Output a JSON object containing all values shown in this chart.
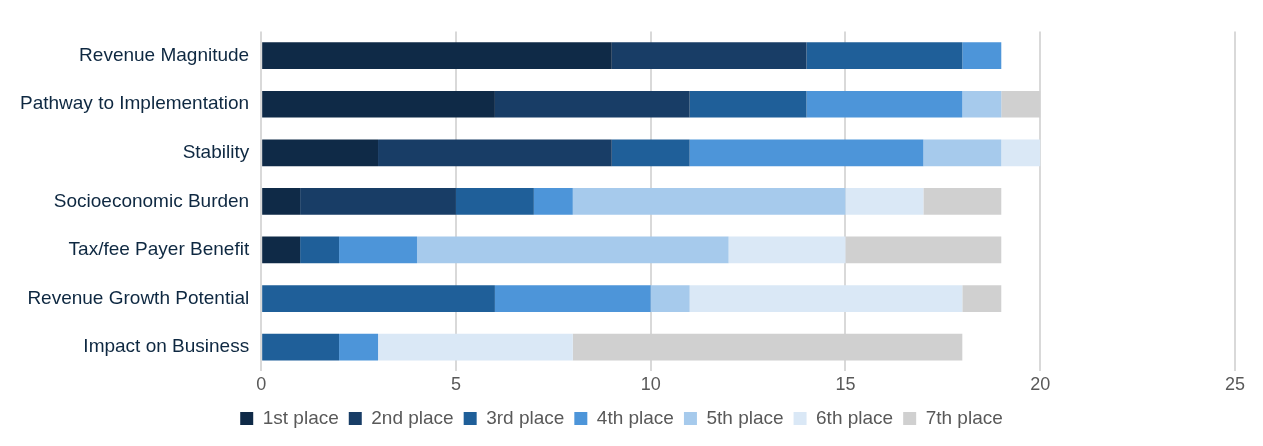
{
  "chart_data": {
    "type": "bar",
    "orientation": "horizontal",
    "stacked": true,
    "categories": [
      "Revenue Magnitude",
      "Pathway to Implementation",
      "Stability",
      "Socioeconomic Burden",
      "Tax/fee Payer Benefit",
      "Revenue Growth Potential",
      "Impact on Business"
    ],
    "series": [
      {
        "name": "1st place",
        "color": "#0f2a47",
        "values": [
          9,
          6,
          3,
          1,
          1,
          0,
          0
        ]
      },
      {
        "name": "2nd place",
        "color": "#183d66",
        "values": [
          5,
          5,
          6,
          4,
          0,
          0,
          0
        ]
      },
      {
        "name": "3rd place",
        "color": "#1f5f99",
        "values": [
          4,
          3,
          2,
          2,
          1,
          6,
          2
        ]
      },
      {
        "name": "4th place",
        "color": "#4d95d9",
        "values": [
          1,
          4,
          6,
          1,
          2,
          4,
          1
        ]
      },
      {
        "name": "5th place",
        "color": "#a6caec",
        "values": [
          0,
          1,
          2,
          7,
          8,
          1,
          0
        ]
      },
      {
        "name": "6th place",
        "color": "#dae8f6",
        "values": [
          0,
          0,
          1,
          2,
          3,
          7,
          5
        ]
      },
      {
        "name": "7th place",
        "color": "#d0d0d0",
        "values": [
          0,
          1,
          0,
          2,
          4,
          1,
          10
        ]
      }
    ],
    "xlim": [
      0,
      25
    ],
    "xticks": [
      0,
      5,
      10,
      15,
      20,
      25
    ],
    "grid": "x",
    "legend": "bottom"
  }
}
